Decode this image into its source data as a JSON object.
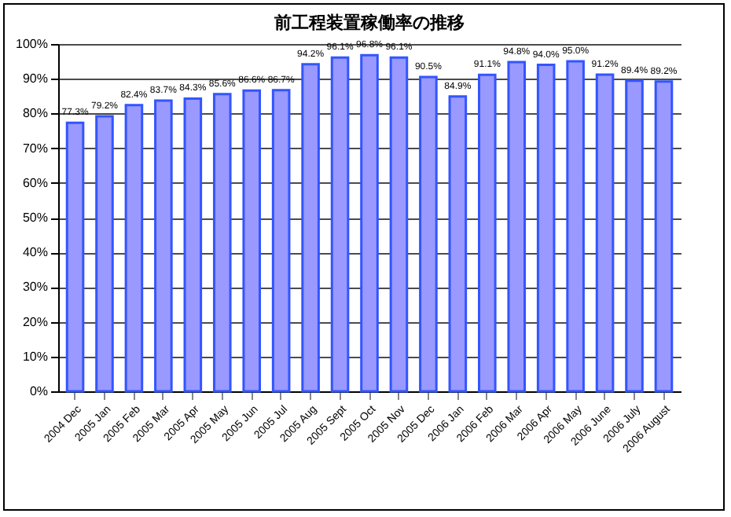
{
  "chart_data": {
    "type": "bar",
    "title": "前工程装置稼働率の推移",
    "categories": [
      "2004 Dec",
      "2005 Jan",
      "2005 Feb",
      "2005 Mar",
      "2005 Apr",
      "2005 May",
      "2005 Jun",
      "2005 Jul",
      "2005 Aug",
      "2005 Sept",
      "2005 Oct",
      "2005 Nov",
      "2005 Dec",
      "2006 Jan",
      "2006 Feb",
      "2006 Mar",
      "2006 Apr",
      "2006 May",
      "2006 June",
      "2006 July",
      "2006 August"
    ],
    "values": [
      77.3,
      79.2,
      82.4,
      83.7,
      84.3,
      85.6,
      86.6,
      86.7,
      94.2,
      96.1,
      96.8,
      96.1,
      90.5,
      84.9,
      91.1,
      94.8,
      94.0,
      95.0,
      91.2,
      89.4,
      89.2
    ],
    "value_labels": [
      "77.3%",
      "79.2%",
      "82.4%",
      "83.7%",
      "84.3%",
      "85.6%",
      "86.6%",
      "86.7%",
      "94.2%",
      "96.1%",
      "96.8%",
      "96.1%",
      "90.5%",
      "84.9%",
      "91.1%",
      "94.8%",
      "94.0%",
      "95.0%",
      "91.2%",
      "89.4%",
      "89.2%"
    ],
    "color": "#9999ff",
    "ylim": [
      0,
      100
    ],
    "yticks": [
      {
        "value": 0,
        "label": "0%"
      },
      {
        "value": 10,
        "label": "10%"
      },
      {
        "value": 20,
        "label": "20%"
      },
      {
        "value": 30,
        "label": "30%"
      },
      {
        "value": 40,
        "label": "40%"
      },
      {
        "value": 50,
        "label": "50%"
      },
      {
        "value": 60,
        "label": "60%"
      },
      {
        "value": 70,
        "label": "70%"
      },
      {
        "value": 80,
        "label": "80%"
      },
      {
        "value": 90,
        "label": "90%"
      },
      {
        "value": 100,
        "label": "100%"
      }
    ],
    "grid": "y"
  }
}
